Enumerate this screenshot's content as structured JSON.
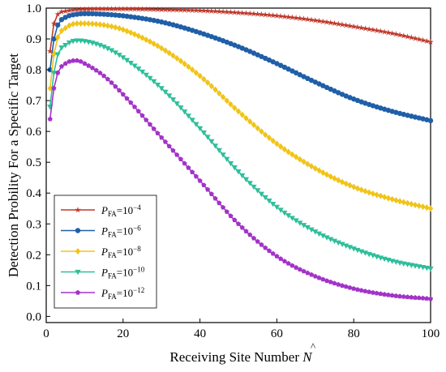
{
  "chart_data": {
    "type": "line",
    "xlabel": "Receiving Site Number N̂",
    "xlabel_main": "Receiving Site Number ",
    "xlabel_symbol": "N",
    "ylabel": "Detection Probility For a Specific Target",
    "xlim": [
      0,
      100
    ],
    "ylim": [
      -0.02,
      1.0
    ],
    "x_ticks": [
      0,
      20,
      40,
      60,
      80,
      100
    ],
    "y_ticks": [
      0.0,
      0.1,
      0.2,
      0.3,
      0.4,
      0.5,
      0.6,
      0.7,
      0.8,
      0.9,
      1.0
    ],
    "grid": false,
    "legend_position": "lower-left",
    "series": [
      {
        "name": "P_FA=10^-4",
        "legend_sub": "FA",
        "legend_exp": "−4",
        "color": "#c0392b",
        "marker": "star",
        "points": [
          [
            1,
            0.86
          ],
          [
            2,
            0.95
          ],
          [
            3,
            0.98
          ],
          [
            5,
            0.99
          ],
          [
            8,
            0.995
          ],
          [
            10,
            0.996
          ],
          [
            15,
            0.997
          ],
          [
            20,
            0.997
          ],
          [
            30,
            0.995
          ],
          [
            40,
            0.992
          ],
          [
            50,
            0.985
          ],
          [
            60,
            0.975
          ],
          [
            70,
            0.96
          ],
          [
            80,
            0.94
          ],
          [
            90,
            0.918
          ],
          [
            100,
            0.89
          ]
        ]
      },
      {
        "name": "P_FA=10^-6",
        "legend_sub": "FA",
        "legend_exp": "−6",
        "color": "#1f5fa8",
        "marker": "circle",
        "points": [
          [
            1,
            0.8
          ],
          [
            2,
            0.9
          ],
          [
            3,
            0.945
          ],
          [
            5,
            0.97
          ],
          [
            8,
            0.98
          ],
          [
            10,
            0.982
          ],
          [
            15,
            0.98
          ],
          [
            20,
            0.975
          ],
          [
            30,
            0.955
          ],
          [
            40,
            0.92
          ],
          [
            50,
            0.875
          ],
          [
            60,
            0.82
          ],
          [
            70,
            0.76
          ],
          [
            80,
            0.705
          ],
          [
            90,
            0.665
          ],
          [
            100,
            0.635
          ]
        ]
      },
      {
        "name": "P_FA=10^-8",
        "legend_sub": "FA",
        "legend_exp": "−8",
        "color": "#f0c419",
        "marker": "diamond",
        "points": [
          [
            1,
            0.74
          ],
          [
            2,
            0.85
          ],
          [
            3,
            0.905
          ],
          [
            5,
            0.935
          ],
          [
            8,
            0.95
          ],
          [
            10,
            0.95
          ],
          [
            15,
            0.945
          ],
          [
            20,
            0.93
          ],
          [
            30,
            0.87
          ],
          [
            40,
            0.78
          ],
          [
            50,
            0.665
          ],
          [
            60,
            0.56
          ],
          [
            70,
            0.48
          ],
          [
            80,
            0.42
          ],
          [
            90,
            0.38
          ],
          [
            100,
            0.35
          ]
        ]
      },
      {
        "name": "P_FA=10^-10",
        "legend_sub": "FA",
        "legend_exp": "−10",
        "color": "#2ebf9a",
        "marker": "triangle-down",
        "points": [
          [
            1,
            0.68
          ],
          [
            2,
            0.79
          ],
          [
            3,
            0.85
          ],
          [
            5,
            0.88
          ],
          [
            8,
            0.895
          ],
          [
            10,
            0.893
          ],
          [
            15,
            0.875
          ],
          [
            20,
            0.84
          ],
          [
            30,
            0.74
          ],
          [
            40,
            0.61
          ],
          [
            50,
            0.47
          ],
          [
            60,
            0.355
          ],
          [
            70,
            0.275
          ],
          [
            80,
            0.22
          ],
          [
            90,
            0.18
          ],
          [
            100,
            0.155
          ]
        ]
      },
      {
        "name": "P_FA=10^-12",
        "legend_sub": "FA",
        "legend_exp": "−12",
        "color": "#a333c8",
        "marker": "pentagon",
        "points": [
          [
            1,
            0.64
          ],
          [
            2,
            0.74
          ],
          [
            3,
            0.79
          ],
          [
            5,
            0.82
          ],
          [
            8,
            0.83
          ],
          [
            10,
            0.82
          ],
          [
            15,
            0.78
          ],
          [
            20,
            0.72
          ],
          [
            30,
            0.58
          ],
          [
            40,
            0.44
          ],
          [
            50,
            0.3
          ],
          [
            60,
            0.195
          ],
          [
            70,
            0.13
          ],
          [
            80,
            0.09
          ],
          [
            90,
            0.068
          ],
          [
            100,
            0.057
          ]
        ]
      }
    ]
  }
}
